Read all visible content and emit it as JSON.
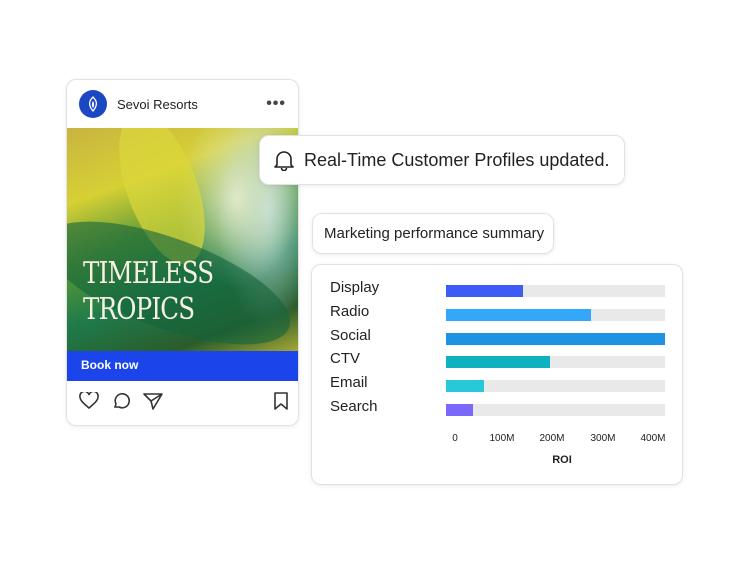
{
  "post": {
    "brand": "Sevoi Resorts",
    "headline_1": "TIMELESS",
    "headline_2": "TROPICS",
    "cta": "Book now"
  },
  "notification": {
    "text": "Real-Time Customer Profiles updated.",
    "icon": "bell-icon"
  },
  "summary_label": "Marketing performance summary",
  "chart_data": {
    "type": "bar",
    "orientation": "horizontal",
    "categories": [
      "Display",
      "Radio",
      "Social",
      "CTV",
      "Email",
      "Search"
    ],
    "values": [
      140,
      265,
      400,
      190,
      70,
      50
    ],
    "colors": [
      "#3d5cf5",
      "#33a7f9",
      "#1e92e3",
      "#0fb0bf",
      "#27c9d8",
      "#7a68fa"
    ],
    "xlabel": "ROI",
    "xlim": [
      0,
      400
    ],
    "ticks": [
      "0",
      "100M",
      "200M",
      "300M",
      "400M"
    ],
    "units": "M",
    "grid": false
  }
}
